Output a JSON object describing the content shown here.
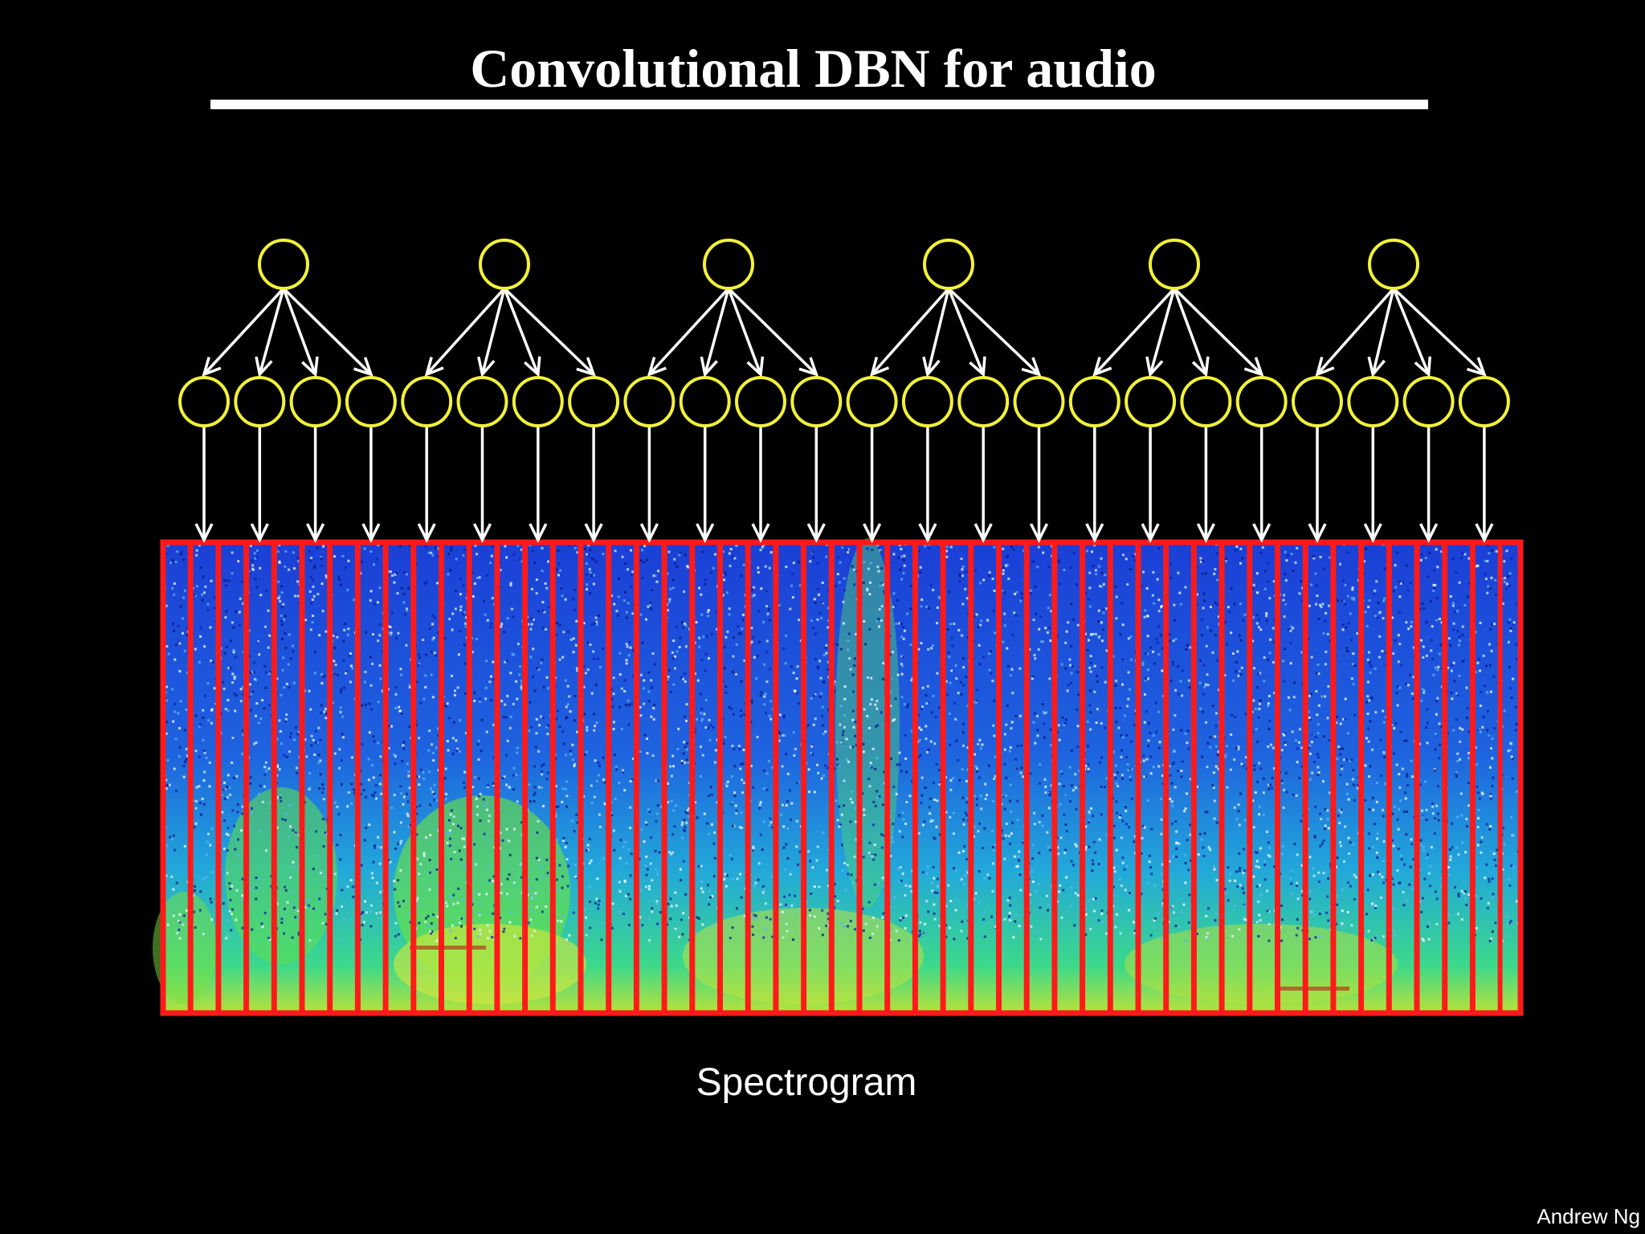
{
  "slide": {
    "title": "Convolutional DBN for audio",
    "caption": "Spectrogram",
    "author": "Andrew Ng"
  },
  "network": {
    "top_layer_units": 6,
    "bottom_units_per_group": 4,
    "spectrogram_windows": 48,
    "unit_color": "#f2f23a",
    "arrow_color": "#ffffff",
    "window_color": "#ff1a1a"
  }
}
